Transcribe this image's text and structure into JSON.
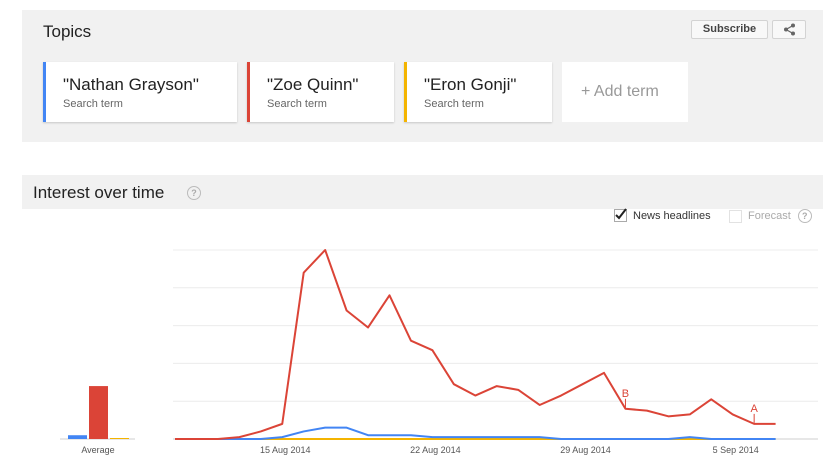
{
  "topics": {
    "title": "Topics",
    "subscribe_label": "Subscribe",
    "share_icon": "share-icon",
    "add_term_label": "+ Add term",
    "terms": [
      {
        "name": "\"Nathan Grayson\"",
        "type": "Search term",
        "color": "#4285f4"
      },
      {
        "name": "\"Zoe Quinn\"",
        "type": "Search term",
        "color": "#db4437"
      },
      {
        "name": "\"Eron Gonji\"",
        "type": "Search term",
        "color": "#f4b400"
      }
    ]
  },
  "interest": {
    "title": "Interest over time",
    "help_icon": "?",
    "news_headlines_label": "News headlines",
    "news_headlines_checked": true,
    "forecast_label": "Forecast",
    "forecast_checked": false
  },
  "chart_data": {
    "type": "line",
    "x_ticks": [
      "15 Aug 2014",
      "22 Aug 2014",
      "29 Aug 2014",
      "5 Sep 2014"
    ],
    "average_label": "Average",
    "ylim": [
      0,
      100
    ],
    "grid": true,
    "averages": [
      {
        "name": "\"Nathan Grayson\"",
        "value": 2,
        "color": "#4285f4"
      },
      {
        "name": "\"Zoe Quinn\"",
        "value": 28,
        "color": "#db4437"
      },
      {
        "name": "\"Eron Gonji\"",
        "value": 0,
        "color": "#f4b400"
      }
    ],
    "x_start": "2014-08-10",
    "series": [
      {
        "name": "\"Zoe Quinn\"",
        "color": "#db4437",
        "values": [
          0,
          0,
          0,
          1,
          4,
          8,
          88,
          100,
          68,
          59,
          76,
          52,
          47,
          29,
          23,
          28,
          26,
          18,
          23,
          29,
          35,
          16,
          15,
          12,
          13,
          21,
          13,
          8,
          8
        ]
      },
      {
        "name": "\"Nathan Grayson\"",
        "color": "#4285f4",
        "values": [
          0,
          0,
          0,
          0,
          0,
          1,
          4,
          6,
          6,
          2,
          2,
          2,
          1,
          1,
          1,
          1,
          1,
          1,
          0,
          0,
          0,
          0,
          0,
          0,
          1,
          0,
          0,
          0,
          0
        ]
      },
      {
        "name": "\"Eron Gonji\"",
        "color": "#f4b400",
        "values": [
          0,
          0,
          0,
          0,
          0,
          0,
          0,
          0,
          0,
          0,
          0,
          0,
          0,
          0,
          0,
          0,
          0,
          0,
          0,
          0,
          0,
          0,
          0,
          0,
          0,
          0,
          0,
          0,
          0
        ]
      }
    ],
    "annotations": [
      {
        "label": "B",
        "index": 21,
        "value": 16
      },
      {
        "label": "A",
        "index": 27,
        "value": 8
      }
    ]
  }
}
